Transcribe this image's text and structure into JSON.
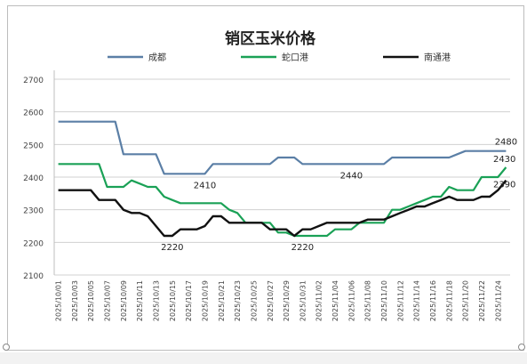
{
  "chart_data": {
    "type": "line",
    "title": "销区玉米价格",
    "xlabel": "",
    "ylabel": "",
    "ylim": [
      2100,
      2700
    ],
    "yticks": [
      2100,
      2200,
      2300,
      2400,
      2500,
      2600,
      2700
    ],
    "grid": "horizontal",
    "legend": "top",
    "x": [
      "2025/10/01",
      "2025/10/02",
      "2025/10/03",
      "2025/10/04",
      "2025/10/05",
      "2025/10/06",
      "2025/10/07",
      "2025/10/08",
      "2025/10/09",
      "2025/10/10",
      "2025/10/11",
      "2025/10/12",
      "2025/10/13",
      "2025/10/14",
      "2025/10/15",
      "2025/10/16",
      "2025/10/17",
      "2025/10/18",
      "2025/10/19",
      "2025/10/20",
      "2025/10/21",
      "2025/10/22",
      "2025/10/23",
      "2025/10/24",
      "2025/10/25",
      "2025/10/26",
      "2025/10/27",
      "2025/10/28",
      "2025/10/29",
      "2025/10/30",
      "2025/10/31",
      "2025/11/01",
      "2025/11/02",
      "2025/11/03",
      "2025/11/04",
      "2025/11/05",
      "2025/11/06",
      "2025/11/07",
      "2025/11/08",
      "2025/11/09",
      "2025/11/10",
      "2025/11/11",
      "2025/11/12",
      "2025/11/13",
      "2025/11/14",
      "2025/11/15",
      "2025/11/16",
      "2025/11/17",
      "2025/11/18",
      "2025/11/19",
      "2025/11/20",
      "2025/11/21",
      "2025/11/22",
      "2025/11/23",
      "2025/11/24",
      "2025/11/25"
    ],
    "xticks": [
      "2025/10/01",
      "2025/10/03",
      "2025/10/05",
      "2025/10/07",
      "2025/10/09",
      "2025/10/11",
      "2025/10/13",
      "2025/10/15",
      "2025/10/17",
      "2025/10/19",
      "2025/10/21",
      "2025/10/23",
      "2025/10/25",
      "2025/10/27",
      "2025/10/29",
      "2025/10/31",
      "2025/11/02",
      "2025/11/04",
      "2025/11/06",
      "2025/11/08",
      "2025/11/10",
      "2025/11/12",
      "2025/11/14",
      "2025/11/16",
      "2025/11/18",
      "2025/11/20",
      "2025/11/22",
      "2025/11/24"
    ],
    "series": [
      {
        "name": "成都",
        "color": "#5b7fa6",
        "values": [
          2570,
          2570,
          2570,
          2570,
          2570,
          2570,
          2570,
          2570,
          2470,
          2470,
          2470,
          2470,
          2470,
          2410,
          2410,
          2410,
          2410,
          2410,
          2410,
          2440,
          2440,
          2440,
          2440,
          2440,
          2440,
          2440,
          2440,
          2460,
          2460,
          2460,
          2440,
          2440,
          2440,
          2440,
          2440,
          2440,
          2440,
          2440,
          2440,
          2440,
          2440,
          2460,
          2460,
          2460,
          2460,
          2460,
          2460,
          2460,
          2460,
          2470,
          2480,
          2480,
          2480,
          2480,
          2480,
          2480
        ]
      },
      {
        "name": "蛇口港",
        "color": "#1aa156",
        "values": [
          2440,
          2440,
          2440,
          2440,
          2440,
          2440,
          2370,
          2370,
          2370,
          2390,
          2380,
          2370,
          2370,
          2340,
          2330,
          2320,
          2320,
          2320,
          2320,
          2320,
          2320,
          2300,
          2290,
          2260,
          2260,
          2260,
          2260,
          2230,
          2230,
          2220,
          2220,
          2220,
          2220,
          2220,
          2240,
          2240,
          2240,
          2260,
          2260,
          2260,
          2260,
          2300,
          2300,
          2310,
          2320,
          2330,
          2340,
          2340,
          2370,
          2360,
          2360,
          2360,
          2400,
          2400,
          2400,
          2430
        ]
      },
      {
        "name": "南通港",
        "color": "#111111",
        "values": [
          2360,
          2360,
          2360,
          2360,
          2360,
          2330,
          2330,
          2330,
          2300,
          2290,
          2290,
          2280,
          2250,
          2220,
          2220,
          2240,
          2240,
          2240,
          2250,
          2280,
          2280,
          2260,
          2260,
          2260,
          2260,
          2260,
          2240,
          2240,
          2240,
          2220,
          2240,
          2240,
          2250,
          2260,
          2260,
          2260,
          2260,
          2260,
          2270,
          2270,
          2270,
          2280,
          2290,
          2300,
          2310,
          2310,
          2320,
          2330,
          2340,
          2330,
          2330,
          2330,
          2340,
          2340,
          2360,
          2390
        ]
      }
    ],
    "annotations": [
      {
        "text": "2410",
        "series": "成都",
        "x": "2025/10/19",
        "value": 2410,
        "placement": "below"
      },
      {
        "text": "2220",
        "series": "南通港",
        "x": "2025/10/15",
        "value": 2220,
        "placement": "below"
      },
      {
        "text": "2220",
        "series": "蛇口港",
        "x": "2025/10/31",
        "value": 2220,
        "placement": "below"
      },
      {
        "text": "2440",
        "series": "成都",
        "x": "2025/11/06",
        "value": 2440,
        "placement": "below"
      },
      {
        "text": "2480",
        "series": "成都",
        "x": "2025/11/25",
        "value": 2480,
        "placement": "above"
      },
      {
        "text": "2430",
        "series": "蛇口港",
        "x": "2025/11/25",
        "value": 2430,
        "placement": "right"
      },
      {
        "text": "2390",
        "series": "南通港",
        "x": "2025/11/25",
        "value": 2390,
        "placement": "right"
      }
    ]
  }
}
